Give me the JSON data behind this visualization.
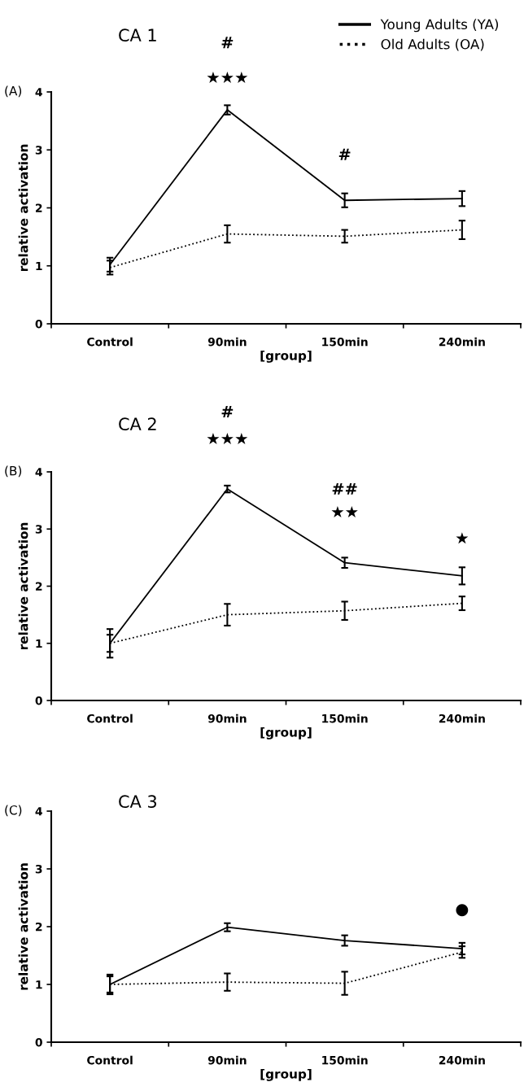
{
  "chart_data": [
    {
      "type": "line",
      "title": "CA 1",
      "xlabel": "[group]",
      "ylabel": "relative activation",
      "categories": [
        "Control",
        "90min",
        "150min",
        "240min"
      ],
      "ylim": [
        0,
        4
      ],
      "yticks": [
        0,
        1,
        2,
        3,
        4
      ],
      "legend": "top right",
      "grid": false,
      "marker": "none",
      "series": [
        {
          "name": "Young Adults (YA)",
          "color": "#000000",
          "line_style": "solid",
          "values": [
            1.02,
            3.69,
            2.13,
            2.16
          ],
          "errors": [
            0.12,
            0.08,
            0.12,
            0.13
          ]
        },
        {
          "name": "Old Adults (OA)",
          "color": "#000000",
          "line_style": "dotted",
          "values": [
            0.97,
            1.55,
            1.51,
            1.62
          ],
          "errors": [
            0.12,
            0.15,
            0.11,
            0.16
          ]
        }
      ],
      "annotations": [
        "(A)",
        "#",
        "★★★",
        "#"
      ]
    },
    {
      "type": "line",
      "title": "CA 2",
      "xlabel": "[group]",
      "ylabel": "relative activation",
      "categories": [
        "Control",
        "90min",
        "150min",
        "240min"
      ],
      "ylim": [
        0,
        4
      ],
      "yticks": [
        0,
        1,
        2,
        3,
        4
      ],
      "grid": false,
      "marker": "none",
      "series": [
        {
          "color": "#000000",
          "line_style": "solid",
          "values": [
            1.0,
            3.7,
            2.41,
            2.18
          ],
          "errors": [
            0.15,
            0.06,
            0.09,
            0.15
          ]
        },
        {
          "color": "#000000",
          "line_style": "dotted",
          "values": [
            1.0,
            1.5,
            1.57,
            1.7
          ],
          "errors": [
            0.25,
            0.19,
            0.16,
            0.12
          ]
        }
      ],
      "annotations": [
        "(B)",
        "#",
        "★★★",
        "##",
        "★★",
        "★"
      ]
    },
    {
      "type": "line",
      "title": "CA 3",
      "xlabel": "[group]",
      "ylabel": "relative activation",
      "categories": [
        "Control",
        "90min",
        "150min",
        "240min"
      ],
      "ylim": [
        0,
        4
      ],
      "yticks": [
        0,
        1,
        2,
        3,
        4
      ],
      "grid": false,
      "marker": "none",
      "series": [
        {
          "color": "#000000",
          "line_style": "solid",
          "values": [
            1.0,
            1.99,
            1.76,
            1.62
          ],
          "errors": [
            0.17,
            0.07,
            0.09,
            0.1
          ]
        },
        {
          "color": "#000000",
          "line_style": "dotted",
          "values": [
            1.0,
            1.04,
            1.02,
            1.56
          ],
          "errors": [
            0.14,
            0.15,
            0.2,
            0.1
          ]
        }
      ],
      "annotations": [
        "(C)",
        "●"
      ]
    }
  ]
}
